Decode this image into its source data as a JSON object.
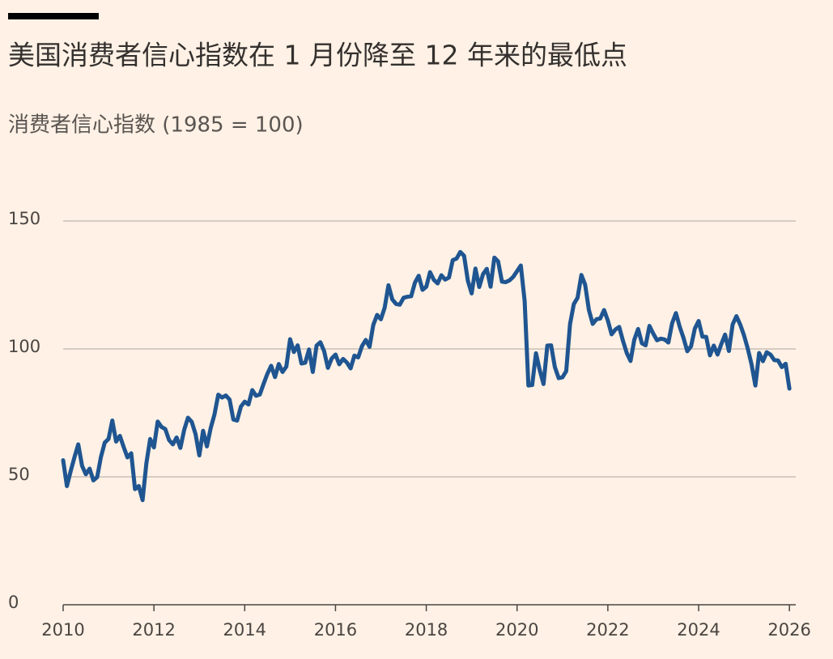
{
  "chart_data": {
    "type": "line",
    "title": "美国消费者信心指数在 1 月份降至 12 年来的最低点",
    "subtitle": "消费者信心指数 (1985 = 100)",
    "color": "#1f5591",
    "xlim": [
      2010,
      2026.14
    ],
    "xticks": [
      2010,
      2012,
      2014,
      2016,
      2018,
      2020,
      2022,
      2024,
      2026
    ],
    "ylim": [
      0,
      150
    ],
    "yticks": [
      0,
      50,
      100,
      150
    ],
    "grid": true,
    "x": [
      2010,
      2010.083,
      2010.167,
      2010.25,
      2010.333,
      2010.417,
      2010.5,
      2010.583,
      2010.667,
      2010.75,
      2010.833,
      2010.917,
      2011,
      2011.083,
      2011.167,
      2011.25,
      2011.333,
      2011.417,
      2011.5,
      2011.583,
      2011.667,
      2011.75,
      2011.833,
      2011.917,
      2012,
      2012.083,
      2012.167,
      2012.25,
      2012.333,
      2012.417,
      2012.5,
      2012.583,
      2012.667,
      2012.75,
      2012.833,
      2012.917,
      2013,
      2013.083,
      2013.167,
      2013.25,
      2013.333,
      2013.417,
      2013.5,
      2013.583,
      2013.667,
      2013.75,
      2013.833,
      2013.917,
      2014,
      2014.083,
      2014.167,
      2014.25,
      2014.333,
      2014.417,
      2014.5,
      2014.583,
      2014.667,
      2014.75,
      2014.833,
      2014.917,
      2015,
      2015.083,
      2015.167,
      2015.25,
      2015.333,
      2015.417,
      2015.5,
      2015.583,
      2015.667,
      2015.75,
      2015.833,
      2015.917,
      2016,
      2016.083,
      2016.167,
      2016.25,
      2016.333,
      2016.417,
      2016.5,
      2016.583,
      2016.667,
      2016.75,
      2016.833,
      2016.917,
      2017,
      2017.083,
      2017.167,
      2017.25,
      2017.333,
      2017.417,
      2017.5,
      2017.583,
      2017.667,
      2017.75,
      2017.833,
      2017.917,
      2018,
      2018.083,
      2018.167,
      2018.25,
      2018.333,
      2018.417,
      2018.5,
      2018.583,
      2018.667,
      2018.75,
      2018.833,
      2018.917,
      2019,
      2019.083,
      2019.167,
      2019.25,
      2019.333,
      2019.417,
      2019.5,
      2019.583,
      2019.667,
      2019.75,
      2019.833,
      2019.917,
      2020,
      2020.083,
      2020.167,
      2020.25,
      2020.333,
      2020.417,
      2020.5,
      2020.583,
      2020.667,
      2020.75,
      2020.833,
      2020.917,
      2021,
      2021.083,
      2021.167,
      2021.25,
      2021.333,
      2021.417,
      2021.5,
      2021.583,
      2021.667,
      2021.75,
      2021.833,
      2021.917,
      2022,
      2022.083,
      2022.167,
      2022.25,
      2022.333,
      2022.417,
      2022.5,
      2022.583,
      2022.667,
      2022.75,
      2022.833,
      2022.917,
      2023,
      2023.083,
      2023.167,
      2023.25,
      2023.333,
      2023.417,
      2023.5,
      2023.583,
      2023.667,
      2023.75,
      2023.833,
      2023.917,
      2024,
      2024.083,
      2024.167,
      2024.25,
      2024.333,
      2024.417,
      2024.5,
      2024.583,
      2024.667,
      2024.75,
      2024.833,
      2024.917,
      2025,
      2025.083,
      2025.167,
      2025.25,
      2025.333,
      2025.417,
      2025.5,
      2025.583,
      2025.667,
      2025.75,
      2025.833,
      2025.917,
      2026
    ],
    "values": [
      56.5,
      46.4,
      52.3,
      57.7,
      62.7,
      54.3,
      51.0,
      53.2,
      48.6,
      49.9,
      57.8,
      63.4,
      64.8,
      72.0,
      63.8,
      66.0,
      61.7,
      57.6,
      59.2,
      45.2,
      46.4,
      40.9,
      55.2,
      64.8,
      61.5,
      71.6,
      69.5,
      68.7,
      64.4,
      62.7,
      65.4,
      61.3,
      68.4,
      73.1,
      71.5,
      66.7,
      58.4,
      68.0,
      61.9,
      69.0,
      74.3,
      82.1,
      81.0,
      81.8,
      80.2,
      72.4,
      72.0,
      77.5,
      79.4,
      78.3,
      83.9,
      81.7,
      82.2,
      86.4,
      90.3,
      93.4,
      89.0,
      94.1,
      91.0,
      93.1,
      103.8,
      98.8,
      101.4,
      94.3,
      94.6,
      99.8,
      91.0,
      101.3,
      102.6,
      99.1,
      92.6,
      96.3,
      97.8,
      94.0,
      96.1,
      94.7,
      92.4,
      97.4,
      96.7,
      101.1,
      103.5,
      100.8,
      109.4,
      113.3,
      111.6,
      116.1,
      124.9,
      119.4,
      117.6,
      117.3,
      120.0,
      120.4,
      120.6,
      125.9,
      128.6,
      123.1,
      124.3,
      130.0,
      127.0,
      125.6,
      128.8,
      127.1,
      127.9,
      134.7,
      135.3,
      137.9,
      136.4,
      126.6,
      121.7,
      131.4,
      124.2,
      129.2,
      131.3,
      124.3,
      135.7,
      134.2,
      126.3,
      126.1,
      126.8,
      128.2,
      130.4,
      132.6,
      118.8,
      85.7,
      85.9,
      98.3,
      91.7,
      86.3,
      101.3,
      101.4,
      92.9,
      88.6,
      88.9,
      91.3,
      109.7,
      117.5,
      120.0,
      128.9,
      125.1,
      115.2,
      109.8,
      111.6,
      111.9,
      115.2,
      111.1,
      105.7,
      107.6,
      108.6,
      103.2,
      98.4,
      95.3,
      103.6,
      107.8,
      102.2,
      101.4,
      109.0,
      106.0,
      103.4,
      104.0,
      103.7,
      102.5,
      110.1,
      114.0,
      108.7,
      104.3,
      99.1,
      101.0,
      108.0,
      110.9,
      104.8,
      104.7,
      97.5,
      101.3,
      97.8,
      101.9,
      105.6,
      99.2,
      109.6,
      112.8,
      109.5,
      105.3,
      100.1,
      93.9,
      85.7,
      98.4,
      95.2,
      98.7,
      97.8,
      95.6,
      95.5,
      92.9,
      94.2,
      84.5
    ]
  }
}
